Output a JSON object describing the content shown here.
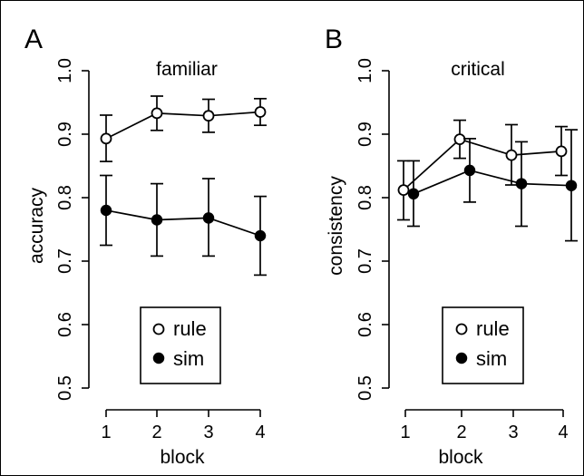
{
  "panels": [
    {
      "letter": "A",
      "title": "familiar",
      "ylabel": "accuracy",
      "xlabel": "block",
      "legend": {
        "rule": "rule",
        "sim": "sim"
      }
    },
    {
      "letter": "B",
      "title": "critical",
      "ylabel": "consistency",
      "xlabel": "block",
      "legend": {
        "rule": "rule",
        "sim": "sim"
      }
    }
  ],
  "chart_data": [
    {
      "type": "line",
      "title": "familiar",
      "xlabel": "block",
      "ylabel": "accuracy",
      "x": [
        1,
        2,
        3,
        4
      ],
      "xticks": [
        "1",
        "2",
        "3",
        "4"
      ],
      "yticks": [
        "0.5",
        "0.6",
        "0.7",
        "0.8",
        "0.9",
        "1.0"
      ],
      "ylim": [
        0.5,
        1.0
      ],
      "legend_position": "bottom-center",
      "series": [
        {
          "name": "rule",
          "marker": "open-circle",
          "values": [
            0.893,
            0.933,
            0.929,
            0.935
          ],
          "error_low": [
            0.857,
            0.906,
            0.903,
            0.914
          ],
          "error_high": [
            0.93,
            0.96,
            0.955,
            0.956
          ]
        },
        {
          "name": "sim",
          "marker": "filled-circle",
          "values": [
            0.78,
            0.765,
            0.768,
            0.74
          ],
          "error_low": [
            0.725,
            0.708,
            0.708,
            0.678
          ],
          "error_high": [
            0.835,
            0.822,
            0.83,
            0.802
          ]
        }
      ]
    },
    {
      "type": "line",
      "title": "critical",
      "xlabel": "block",
      "ylabel": "consistency",
      "x": [
        1,
        2,
        3,
        4
      ],
      "xticks": [
        "1",
        "2",
        "3",
        "4"
      ],
      "yticks": [
        "0.5",
        "0.6",
        "0.7",
        "0.8",
        "0.9",
        "1.0"
      ],
      "ylim": [
        0.5,
        1.0
      ],
      "legend_position": "bottom-center",
      "series": [
        {
          "name": "rule",
          "marker": "open-circle",
          "values": [
            0.812,
            0.892,
            0.867,
            0.873
          ],
          "error_low": [
            0.765,
            0.862,
            0.82,
            0.835
          ],
          "error_high": [
            0.858,
            0.922,
            0.915,
            0.912
          ]
        },
        {
          "name": "sim",
          "marker": "filled-circle",
          "values": [
            0.806,
            0.843,
            0.822,
            0.819
          ],
          "error_low": [
            0.755,
            0.793,
            0.755,
            0.732
          ],
          "error_high": [
            0.858,
            0.893,
            0.888,
            0.907
          ]
        }
      ]
    }
  ]
}
